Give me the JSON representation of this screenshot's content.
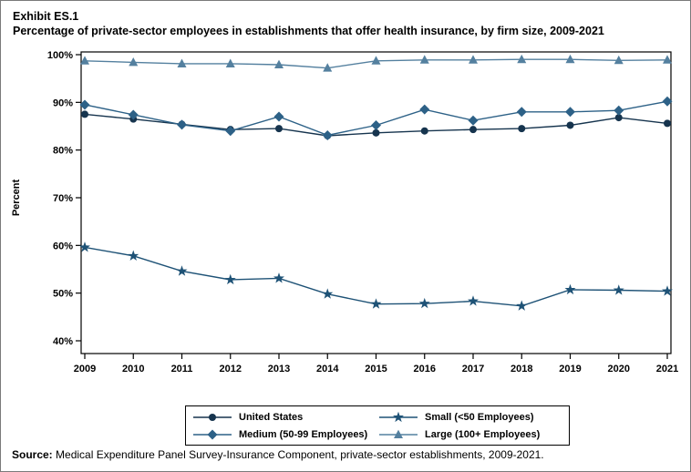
{
  "title": {
    "exhibit": "Exhibit ES.1",
    "heading": "Percentage of private-sector employees in establishments that offer health insurance, by firm size, 2009-2021"
  },
  "source": {
    "label": "Source:",
    "text": " Medical Expenditure Panel Survey-Insurance Component, private-sector establishments, 2009-2021."
  },
  "chart_data": {
    "type": "line",
    "title": "Percentage of private-sector employees in establishments that offer health insurance, by firm size, 2009-2021",
    "xlabel": "",
    "ylabel": "Percent",
    "ylim": [
      40,
      100
    ],
    "yticks": [
      40,
      50,
      60,
      70,
      80,
      90,
      100
    ],
    "ytick_suffix": "%",
    "x": [
      2009,
      2010,
      2011,
      2012,
      2013,
      2014,
      2015,
      2016,
      2017,
      2018,
      2019,
      2020,
      2021
    ],
    "grid": false,
    "legend_position": "bottom",
    "series": [
      {
        "name": "United States",
        "marker": "circle",
        "color": "#16344e",
        "values": [
          87.5,
          86.5,
          85.4,
          84.3,
          84.5,
          83.0,
          83.6,
          84.0,
          84.3,
          84.5,
          85.2,
          86.8,
          85.6
        ]
      },
      {
        "name": "Medium (50-99 Employees)",
        "marker": "diamond",
        "color": "#2d6187",
        "values": [
          89.5,
          87.4,
          85.3,
          84.0,
          87.0,
          83.1,
          85.2,
          88.5,
          86.2,
          88.0,
          88.0,
          88.3,
          90.2
        ]
      },
      {
        "name": "Small (<50 Employees)",
        "marker": "star",
        "color": "#1e5276",
        "values": [
          59.6,
          57.8,
          54.6,
          52.8,
          53.1,
          49.8,
          47.7,
          47.8,
          48.3,
          47.3,
          50.7,
          50.6,
          50.4
        ]
      },
      {
        "name": "Large (100+ Employees)",
        "marker": "triangle",
        "color": "#54809f",
        "values": [
          98.7,
          98.4,
          98.1,
          98.1,
          97.9,
          97.2,
          98.7,
          98.9,
          98.9,
          99.0,
          99.0,
          98.8,
          98.9
        ]
      }
    ]
  }
}
